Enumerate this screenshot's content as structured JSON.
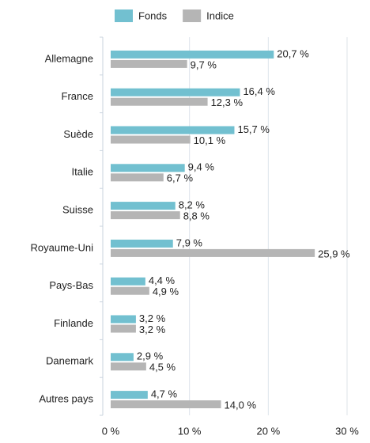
{
  "chart_data": {
    "type": "bar",
    "orientation": "horizontal",
    "categories": [
      "Allemagne",
      "France",
      "Suède",
      "Italie",
      "Suisse",
      "Royaume-Uni",
      "Pays-Bas",
      "Finlande",
      "Danemark",
      "Autres pays"
    ],
    "series": [
      {
        "name": "Fonds",
        "color": "#72c0d0",
        "values": [
          20.7,
          16.4,
          15.7,
          9.4,
          8.2,
          7.9,
          4.4,
          3.2,
          2.9,
          4.7
        ],
        "value_labels": [
          "20,7 %",
          "16,4 %",
          "15,7 %",
          "9,4 %",
          "8,2 %",
          "7,9 %",
          "4,4 %",
          "3,2 %",
          "2,9 %",
          "4,7 %"
        ]
      },
      {
        "name": "Indice",
        "color": "#b5b5b5",
        "values": [
          9.7,
          12.3,
          10.1,
          6.7,
          8.8,
          25.9,
          4.9,
          3.2,
          4.5,
          14.0
        ],
        "value_labels": [
          "9,7 %",
          "12,3 %",
          "10,1 %",
          "6,7 %",
          "8,8 %",
          "25,9 %",
          "4,9 %",
          "3,2 %",
          "4,5 %",
          "14,0 %"
        ]
      }
    ],
    "xlim": [
      0,
      30
    ],
    "xticks": [
      {
        "value": 0,
        "label": "0 %"
      },
      {
        "value": 10,
        "label": "10 %"
      },
      {
        "value": 20,
        "label": "20 %"
      },
      {
        "value": 30,
        "label": "30 %"
      }
    ],
    "grid": true,
    "legend": "top"
  }
}
